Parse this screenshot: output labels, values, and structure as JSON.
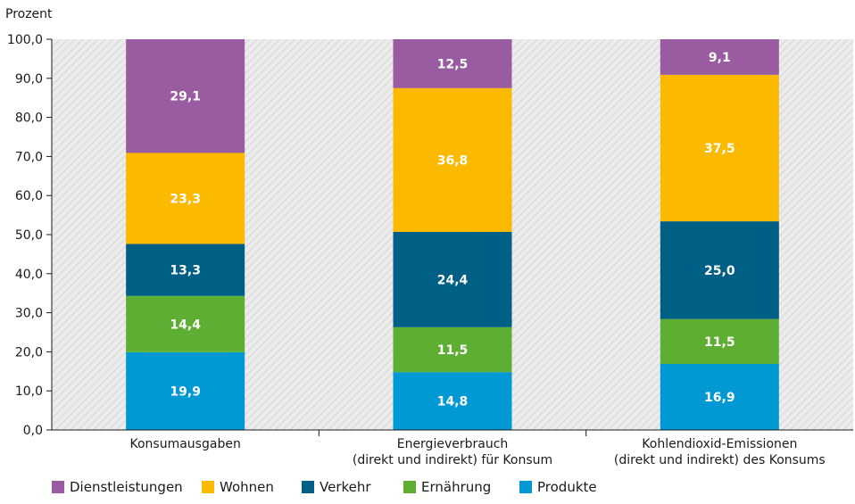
{
  "chart_data": {
    "type": "bar",
    "stacked": true,
    "unit_label": "Prozent",
    "categories": [
      [
        "Konsumausgaben"
      ],
      [
        "Energieverbrauch",
        "(direkt und indirekt) für Konsum"
      ],
      [
        "Kohlendioxid-Emissionen",
        "(direkt und indirekt) des Konsums"
      ]
    ],
    "series": [
      {
        "name": "Produkte",
        "color": "#0099d4",
        "values": [
          19.9,
          14.8,
          16.9
        ]
      },
      {
        "name": "Ernährung",
        "color": "#5eae33",
        "values": [
          14.4,
          11.5,
          11.5
        ]
      },
      {
        "name": "Verkehr",
        "color": "#005f85",
        "values": [
          13.3,
          24.4,
          25.0
        ]
      },
      {
        "name": "Wohnen",
        "color": "#fbb900",
        "values": [
          23.3,
          36.8,
          37.5
        ]
      },
      {
        "name": "Dienstleistungen",
        "color": "#9a5ca0",
        "values": [
          29.1,
          12.5,
          9.1
        ]
      }
    ],
    "legend_order": [
      "Dienstleistungen",
      "Wohnen",
      "Verkehr",
      "Ernährung",
      "Produkte"
    ],
    "ylim": [
      0,
      100
    ],
    "ytick_step": 10,
    "grid": false,
    "background": "hatched-grey",
    "legend_position": "bottom-left",
    "decimal_separator": ","
  }
}
